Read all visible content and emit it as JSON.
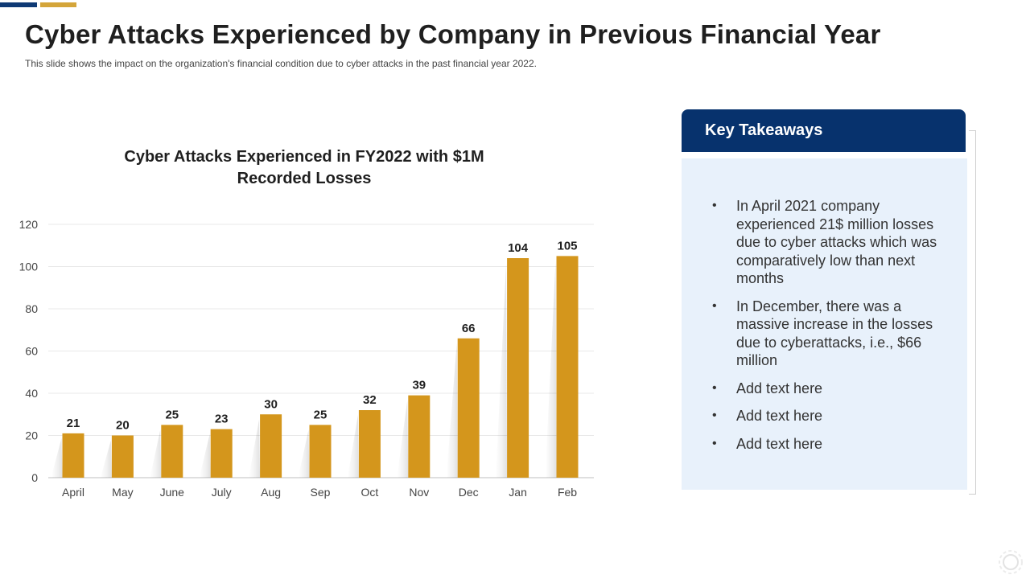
{
  "header": {
    "title": "Cyber Attacks Experienced by Company in Previous Financial Year",
    "subtitle": "This slide shows the impact on the organization's financial condition due to cyber attacks in the past financial year 2022."
  },
  "chart_data": {
    "type": "bar",
    "title_line1": "Cyber Attacks Experienced in FY2022 with $1M",
    "title_line2": "Recorded Losses",
    "categories": [
      "April",
      "May",
      "June",
      "July",
      "Aug",
      "Sep",
      "Oct",
      "Nov",
      "Dec",
      "Jan",
      "Feb"
    ],
    "values": [
      21,
      20,
      25,
      23,
      30,
      25,
      32,
      39,
      66,
      104,
      105
    ],
    "ylim": [
      0,
      120
    ],
    "yticks": [
      0,
      20,
      40,
      60,
      80,
      100,
      120
    ],
    "xlabel": "",
    "ylabel": "",
    "grid": true,
    "bar_color": "#d4961c"
  },
  "takeaways": {
    "title": "Key Takeaways",
    "bullet": "•",
    "items": [
      "In April 2021 company experienced 21$ million losses due to cyber attacks which was comparatively low than next months",
      "In December, there was a massive increase in the losses due to cyberattacks, i.e., $66 million",
      "Add text here",
      "Add text here",
      "Add text here"
    ]
  },
  "colors": {
    "accent_blue": "#0f3a75",
    "accent_gold": "#d4a53a",
    "header_blue": "#07326d",
    "panel_bg": "#e8f1fb"
  }
}
